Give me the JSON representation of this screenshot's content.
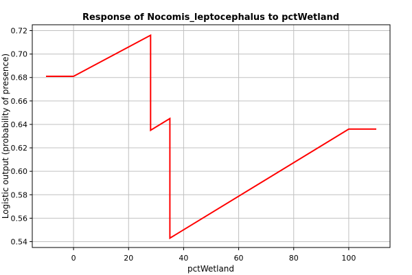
{
  "chart_data": {
    "type": "line",
    "title": "Response of Nocomis_leptocephalus to pctWetland",
    "xlabel": "pctWetland",
    "ylabel": "Logistic output (probability of presence)",
    "xlim": [
      -15,
      115
    ],
    "ylim": [
      0.535,
      0.725
    ],
    "x_ticks": [
      0,
      20,
      40,
      60,
      80,
      100
    ],
    "x_tick_labels": [
      "0",
      "20",
      "40",
      "60",
      "80",
      "100"
    ],
    "y_ticks": [
      0.54,
      0.56,
      0.58,
      0.6,
      0.62,
      0.64,
      0.66,
      0.68,
      0.7,
      0.72
    ],
    "y_tick_labels": [
      "0.54",
      "0.56",
      "0.58",
      "0.60",
      "0.62",
      "0.64",
      "0.66",
      "0.68",
      "0.70",
      "0.72"
    ],
    "grid": true,
    "series": [
      {
        "color": "#ff0000",
        "x": [
          -10,
          0,
          28,
          28,
          35,
          35,
          100,
          110
        ],
        "y": [
          0.681,
          0.681,
          0.716,
          0.635,
          0.645,
          0.543,
          0.636,
          0.636
        ]
      }
    ]
  }
}
